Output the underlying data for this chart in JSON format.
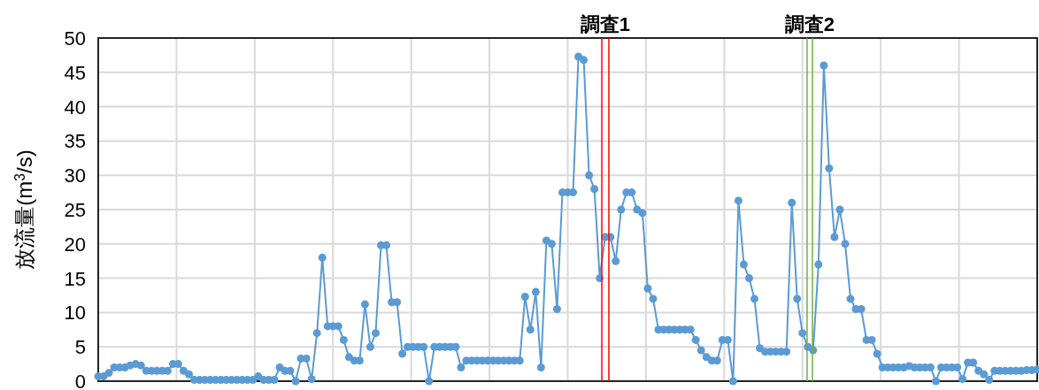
{
  "chart_data": {
    "type": "line",
    "ylabel": "放流量(m$^{3}$/s)",
    "categories": [
      null,
      null,
      null,
      null,
      null,
      null,
      null,
      null,
      null,
      null,
      null,
      null,
      null,
      null,
      null,
      null,
      null,
      null,
      null,
      null,
      null,
      null,
      null,
      null,
      null,
      null,
      null,
      null,
      null,
      null,
      null,
      null,
      null,
      null,
      null,
      null,
      null,
      null,
      null,
      null,
      null,
      null,
      null,
      null,
      null,
      null,
      null,
      null,
      null,
      null,
      null,
      null,
      null,
      null,
      null,
      null,
      null,
      null,
      null,
      null,
      null,
      null,
      null,
      null,
      null,
      null,
      null,
      null,
      null,
      null,
      null,
      null,
      null,
      null,
      null,
      null,
      null,
      null,
      null,
      null,
      null,
      null,
      null,
      null,
      null,
      null,
      null,
      null,
      null,
      null,
      null,
      null,
      null,
      null,
      null,
      null,
      null,
      null,
      null,
      null,
      null,
      null,
      null,
      null,
      null,
      null,
      null,
      null,
      null,
      null,
      null,
      null,
      null,
      null,
      null,
      null,
      null,
      null,
      null,
      null,
      null,
      null,
      null,
      null,
      null,
      null,
      null,
      null,
      null,
      null,
      null,
      null,
      null,
      null,
      null,
      null,
      null,
      null,
      null,
      null,
      null,
      null,
      null,
      null,
      null,
      null,
      null,
      null,
      null,
      null,
      null,
      null,
      null,
      null,
      null,
      null,
      null,
      null,
      null,
      null,
      null,
      null,
      null,
      null,
      null,
      null,
      null,
      null,
      null,
      null,
      null,
      null,
      null,
      null,
      null,
      null,
      null
    ],
    "ylim": [
      0,
      50
    ],
    "yticks": [
      0,
      5,
      10,
      15,
      20,
      25,
      30,
      35,
      40,
      45,
      50
    ],
    "grid": true,
    "marker": "circle",
    "line_style": "solid",
    "annotations": [
      "調査1",
      "調査2"
    ],
    "series": [
      {
        "color": "#5b9bd5",
        "values": [
          0.7,
          0.7,
          1.2,
          2,
          2,
          2,
          2.3,
          2.5,
          2.3,
          1.5,
          1.5,
          1.5,
          1.5,
          1.5,
          2.5,
          2.5,
          1.5,
          1,
          0.2,
          0.2,
          0.2,
          0.2,
          0.2,
          0.2,
          0.2,
          0.2,
          0.2,
          0.2,
          0.2,
          0.2,
          0.7,
          0.2,
          0.2,
          0.2,
          2,
          1.5,
          1.5,
          0,
          3.3,
          3.3,
          0.3,
          7,
          18,
          8,
          8,
          8,
          6,
          3.5,
          3,
          3,
          11.2,
          5,
          7,
          19.8,
          19.8,
          11.5,
          11.5,
          4,
          5,
          5,
          5,
          5,
          0,
          5,
          5,
          5,
          5,
          5,
          2,
          3,
          3,
          3,
          3,
          3,
          3,
          3,
          3,
          3,
          3,
          3,
          12.3,
          7.5,
          13,
          2,
          20.5,
          20,
          10.5,
          27.5,
          27.5,
          27.5,
          47.3,
          46.8,
          30,
          28,
          15,
          21,
          21,
          17.5,
          25,
          27.5,
          27.5,
          25,
          24.5,
          13.5,
          12,
          7.5,
          7.5,
          7.5,
          7.5,
          7.5,
          7.5,
          7.5,
          6,
          4.5,
          3.5,
          3,
          3,
          6,
          6,
          0,
          26.3,
          17,
          15,
          12,
          4.8,
          4.3,
          4.3,
          4.3,
          4.3,
          4.3,
          26,
          12,
          7,
          5,
          4.5,
          17,
          46,
          31,
          21,
          25,
          20,
          12,
          10.5,
          10.5,
          6,
          6,
          4,
          2,
          2,
          2,
          2,
          2,
          2.2,
          2,
          2,
          2,
          2,
          0,
          2,
          2,
          2,
          2,
          0.3,
          2.7,
          2.7,
          1.5,
          1,
          0.2,
          1.5,
          1.5,
          1.5,
          1.5,
          1.5,
          1.5,
          1.6,
          1.6,
          1.7
        ]
      }
    ]
  }
}
